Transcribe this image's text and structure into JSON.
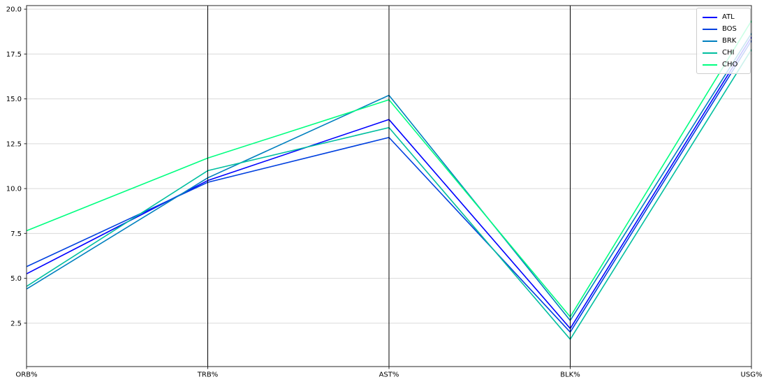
{
  "chart_data": {
    "type": "line",
    "subtype": "parallel-coordinates",
    "title": "",
    "xlabel": "",
    "ylabel": "",
    "categories": [
      "ORB%",
      "TRB%",
      "AST%",
      "BLK%",
      "USG%"
    ],
    "series": [
      {
        "name": "ATL",
        "color": "#0000ff",
        "values": [
          5.25,
          10.45,
          13.85,
          2.2,
          18.45
        ]
      },
      {
        "name": "BOS",
        "color": "#0040df",
        "values": [
          5.65,
          10.35,
          12.85,
          2.0,
          18.25
        ]
      },
      {
        "name": "BRK",
        "color": "#0080bf",
        "values": [
          4.4,
          10.6,
          15.2,
          2.65,
          18.65
        ]
      },
      {
        "name": "CHI",
        "color": "#00bf9f",
        "values": [
          4.55,
          11.0,
          13.4,
          1.6,
          17.75
        ]
      },
      {
        "name": "CHO",
        "color": "#00ff80",
        "values": [
          7.65,
          11.7,
          14.95,
          2.85,
          19.35
        ]
      }
    ],
    "y_ticks": [
      2.5,
      5.0,
      7.5,
      10.0,
      12.5,
      15.0,
      17.5,
      20.0
    ],
    "y_tick_labels": [
      "2.5",
      "5.0",
      "7.5",
      "10.0",
      "12.5",
      "15.0",
      "17.5",
      "20.0"
    ],
    "ylim": [
      0.08,
      20.2
    ],
    "grid": "horizontal",
    "legend_position": "top-right",
    "legend_entries": [
      "ATL",
      "BOS",
      "BRK",
      "CHI",
      "CHO"
    ],
    "colors": {
      "background": "#ffffff",
      "grid": "#d9d9d9",
      "category_axis_line": "#000000",
      "spine": "#262626",
      "tick": "#262626",
      "legend_border": "#cccccc"
    }
  }
}
